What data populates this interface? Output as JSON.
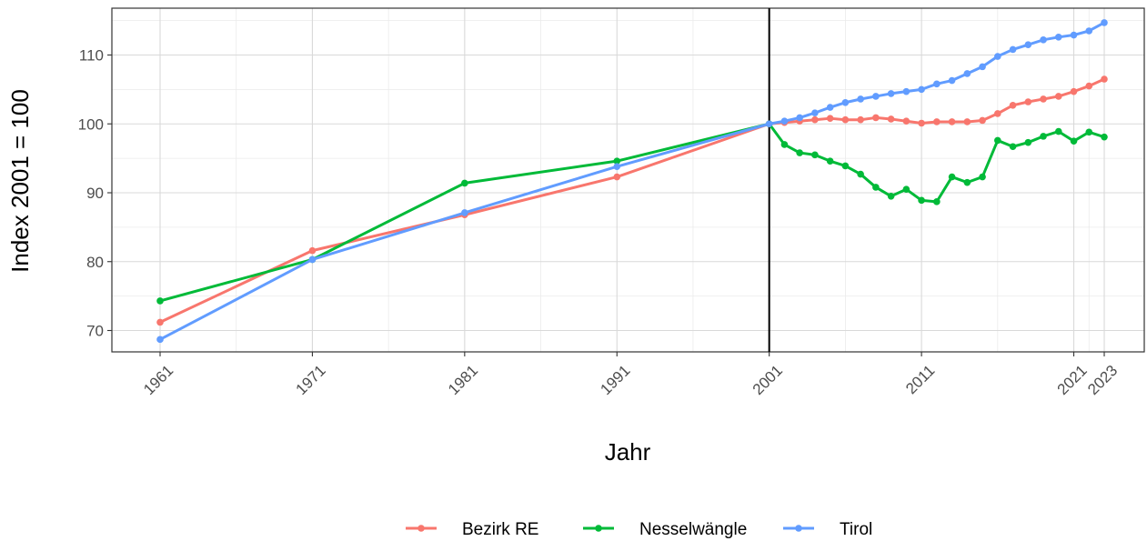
{
  "chart_data": {
    "type": "line",
    "title": "",
    "xlabel": "Jahr",
    "ylabel": "Index 2001 = 100",
    "xlim": [
      1961,
      2023
    ],
    "ylim": [
      66.4,
      116.3
    ],
    "x_ticks": [
      1961,
      1971,
      1981,
      1991,
      2001,
      2011,
      2021,
      2023
    ],
    "y_ticks": [
      70,
      80,
      90,
      100,
      110
    ],
    "grid": true,
    "vline_x": 2001,
    "legend_position": "bottom",
    "series": [
      {
        "name": "Bezirk RE",
        "color": "#F8766D",
        "points": [
          [
            1961,
            71.2
          ],
          [
            1971,
            81.6
          ],
          [
            1981,
            86.8
          ],
          [
            1991,
            92.3
          ],
          [
            2001,
            100.0
          ],
          [
            2002,
            100.2
          ],
          [
            2003,
            100.4
          ],
          [
            2004,
            100.6
          ],
          [
            2005,
            100.8
          ],
          [
            2006,
            100.6
          ],
          [
            2007,
            100.6
          ],
          [
            2008,
            100.9
          ],
          [
            2009,
            100.7
          ],
          [
            2010,
            100.4
          ],
          [
            2011,
            100.1
          ],
          [
            2012,
            100.3
          ],
          [
            2013,
            100.3
          ],
          [
            2014,
            100.3
          ],
          [
            2015,
            100.5
          ],
          [
            2016,
            101.5
          ],
          [
            2017,
            102.7
          ],
          [
            2018,
            103.2
          ],
          [
            2019,
            103.6
          ],
          [
            2020,
            104.0
          ],
          [
            2021,
            104.7
          ],
          [
            2022,
            105.5
          ],
          [
            2023,
            106.5
          ]
        ]
      },
      {
        "name": "Nesselwängle",
        "color": "#00BA38",
        "points": [
          [
            1961,
            74.3
          ],
          [
            1971,
            80.3
          ],
          [
            1981,
            91.4
          ],
          [
            1991,
            94.6
          ],
          [
            2001,
            100.0
          ],
          [
            2002,
            97.0
          ],
          [
            2003,
            95.8
          ],
          [
            2004,
            95.5
          ],
          [
            2005,
            94.6
          ],
          [
            2006,
            93.9
          ],
          [
            2007,
            92.7
          ],
          [
            2008,
            90.8
          ],
          [
            2009,
            89.5
          ],
          [
            2010,
            90.5
          ],
          [
            2011,
            88.9
          ],
          [
            2012,
            88.7
          ],
          [
            2013,
            92.3
          ],
          [
            2014,
            91.5
          ],
          [
            2015,
            92.3
          ],
          [
            2016,
            97.6
          ],
          [
            2017,
            96.7
          ],
          [
            2018,
            97.3
          ],
          [
            2019,
            98.2
          ],
          [
            2020,
            98.9
          ],
          [
            2021,
            97.5
          ],
          [
            2022,
            98.8
          ],
          [
            2023,
            98.1
          ]
        ]
      },
      {
        "name": "Tirol",
        "color": "#619CFF",
        "points": [
          [
            1961,
            68.7
          ],
          [
            1971,
            80.3
          ],
          [
            1981,
            87.1
          ],
          [
            1991,
            93.8
          ],
          [
            2001,
            100.0
          ],
          [
            2002,
            100.4
          ],
          [
            2003,
            100.9
          ],
          [
            2004,
            101.6
          ],
          [
            2005,
            102.4
          ],
          [
            2006,
            103.1
          ],
          [
            2007,
            103.6
          ],
          [
            2008,
            104.0
          ],
          [
            2009,
            104.4
          ],
          [
            2010,
            104.7
          ],
          [
            2011,
            105.0
          ],
          [
            2012,
            105.8
          ],
          [
            2013,
            106.3
          ],
          [
            2014,
            107.3
          ],
          [
            2015,
            108.3
          ],
          [
            2016,
            109.8
          ],
          [
            2017,
            110.8
          ],
          [
            2018,
            111.5
          ],
          [
            2019,
            112.2
          ],
          [
            2020,
            112.6
          ],
          [
            2021,
            112.9
          ],
          [
            2022,
            113.5
          ],
          [
            2023,
            114.7
          ]
        ]
      }
    ]
  }
}
